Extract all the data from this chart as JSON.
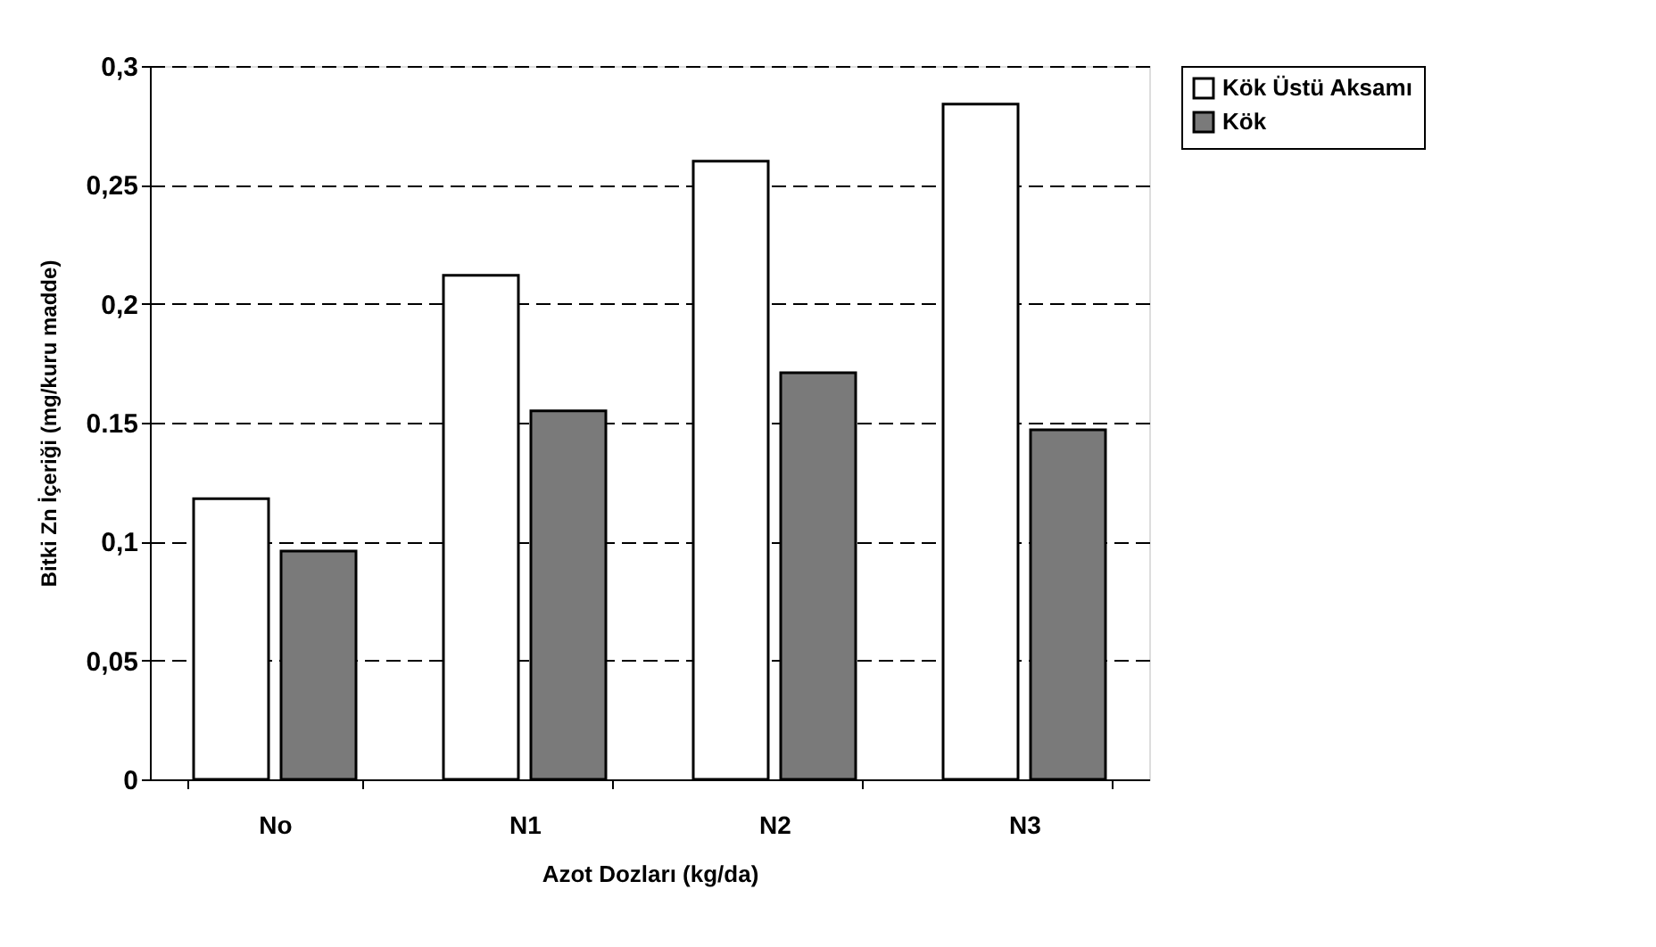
{
  "chart_data": {
    "type": "bar",
    "xlabel": "Azot Dozları (kg/da)",
    "ylabel": "Bitki Zn İçeriği (mg/kuru madde)",
    "categories": [
      "No",
      "N1",
      "N2",
      "N3"
    ],
    "series": [
      {
        "name": "Kök Üstü Aksamı",
        "color": "#ffffff",
        "values": [
          0.118,
          0.212,
          0.26,
          0.284
        ]
      },
      {
        "name": "Kök",
        "color": "#7a7a7a",
        "values": [
          0.096,
          0.155,
          0.171,
          0.147
        ]
      }
    ],
    "ylim": [
      0,
      0.3
    ],
    "yticks": [
      0,
      {
        "value": 0.05,
        "label": "0,05"
      },
      {
        "value": 0.1,
        "label": "0,1"
      },
      0.15,
      {
        "value": 0.2,
        "label": "0,2"
      },
      {
        "value": 0.25,
        "label": "0,25"
      },
      {
        "value": 0.3,
        "label": "0,3"
      }
    ],
    "grid": "y",
    "legend": "right"
  }
}
